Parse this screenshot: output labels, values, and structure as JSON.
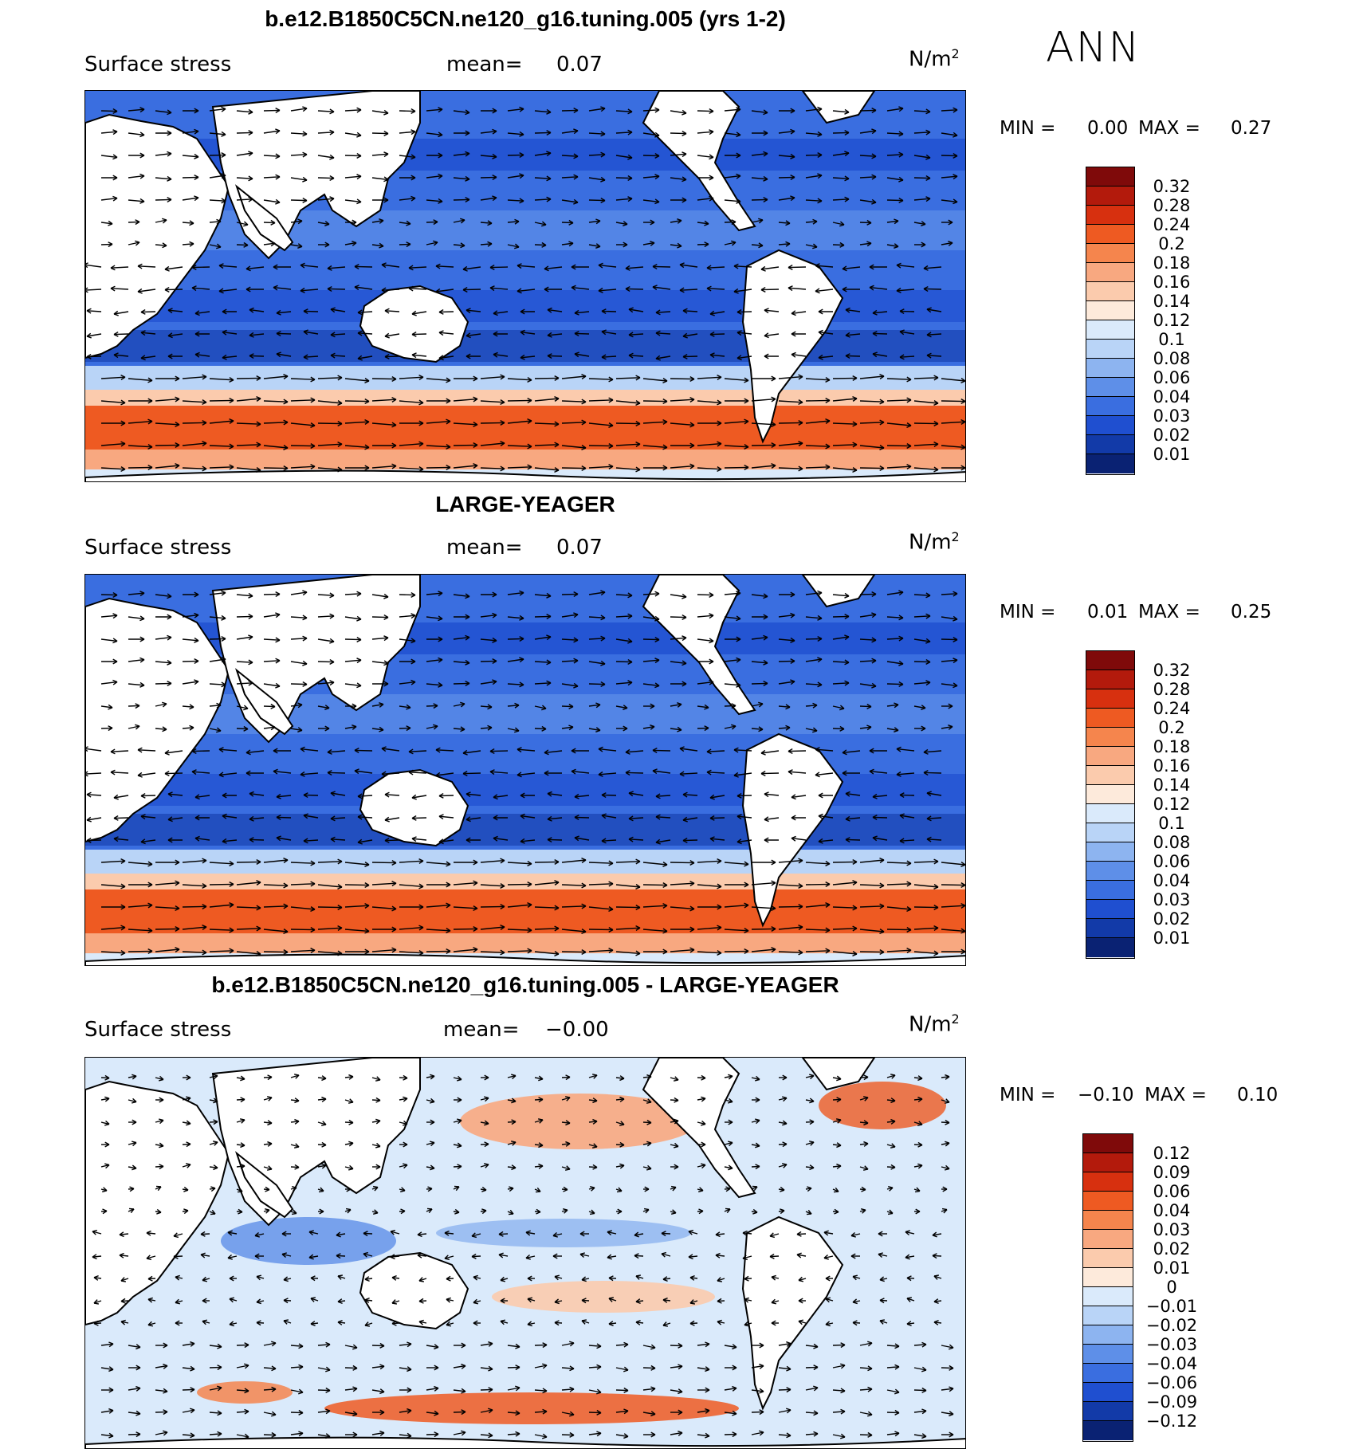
{
  "season": "ANN",
  "panels": [
    {
      "title": "b.e12.B1850C5CN.ne120_g16.tuning.005 (yrs 1-2)",
      "variable": "Surface stress",
      "mean_label": "mean=",
      "mean_value": "0.07",
      "units": "N/m",
      "units_sup": "2",
      "min_label": "MIN =",
      "min_value": "0.00",
      "max_label": "MAX =",
      "max_value": "0.27",
      "scheme": "abs"
    },
    {
      "title": "LARGE-YEAGER",
      "variable": "Surface stress",
      "mean_label": "mean=",
      "mean_value": "0.07",
      "units": "N/m",
      "units_sup": "2",
      "min_label": "MIN =",
      "min_value": "0.01",
      "max_label": "MAX =",
      "max_value": "0.25",
      "scheme": "abs"
    },
    {
      "title": "b.e12.B1850C5CN.ne120_g16.tuning.005 - LARGE-YEAGER",
      "variable": "Surface stress",
      "mean_label": "mean=",
      "mean_value": "−0.00",
      "units": "N/m",
      "units_sup": "2",
      "min_label": "MIN =",
      "min_value": "−0.10",
      "max_label": "MAX =",
      "max_value": "0.10",
      "scheme": "diff"
    }
  ],
  "colorbars": {
    "abs": {
      "labels": [
        "0.32",
        "0.28",
        "0.24",
        "0.2",
        "0.18",
        "0.16",
        "0.14",
        "0.12",
        "0.1",
        "0.08",
        "0.06",
        "0.04",
        "0.03",
        "0.02",
        "0.01"
      ],
      "colors": [
        "#7f0a0a",
        "#b31a0c",
        "#d7300f",
        "#ee5a22",
        "#f5854d",
        "#f8a880",
        "#fbcbad",
        "#fdeadb",
        "#daeafb",
        "#b9d4f7",
        "#8db4f0",
        "#5e8fe8",
        "#3a6ee0",
        "#1f4fd0",
        "#123aa8",
        "#0a2273"
      ]
    },
    "diff": {
      "labels": [
        "0.12",
        "0.09",
        "0.06",
        "0.04",
        "0.03",
        "0.02",
        "0.01",
        "0",
        "−0.01",
        "−0.02",
        "−0.03",
        "−0.04",
        "−0.06",
        "−0.09",
        "−0.12"
      ],
      "colors": [
        "#7f0a0a",
        "#b31a0c",
        "#d7300f",
        "#ee5a22",
        "#f5854d",
        "#f8a880",
        "#fbcbad",
        "#fdeadb",
        "#daeafb",
        "#b9d4f7",
        "#8db4f0",
        "#5e8fe8",
        "#3a6ee0",
        "#1f4fd0",
        "#123aa8",
        "#0a2273"
      ]
    }
  }
}
